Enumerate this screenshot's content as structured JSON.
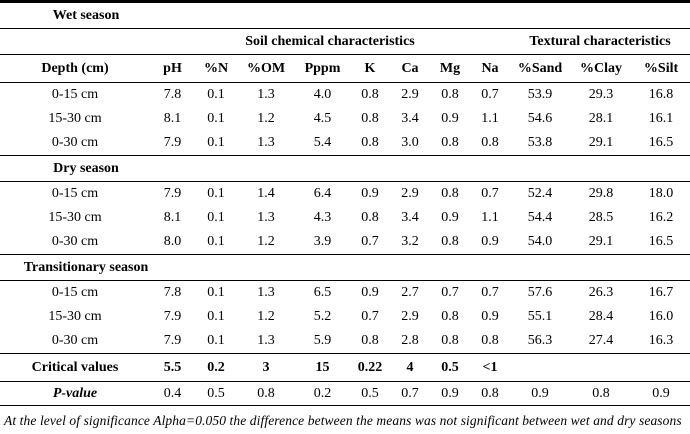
{
  "colors": {
    "text": "#000000",
    "background": "#ffffff",
    "rule": "#000000"
  },
  "table": {
    "columns": [
      "Depth (cm)",
      "pH",
      "%N",
      "%OM",
      "Pppm",
      "K",
      "Ca",
      "Mg",
      "Na",
      "%Sand",
      "%Clay",
      "%Silt"
    ],
    "group_headers": [
      {
        "label": "Soil chemical characteristics",
        "span": 8
      },
      {
        "label": "Textural characteristics",
        "span": 3
      }
    ],
    "sections": [
      {
        "season": "Wet season",
        "rows": [
          [
            "0-15 cm",
            "7.8",
            "0.1",
            "1.3",
            "4.0",
            "0.8",
            "2.9",
            "0.8",
            "0.7",
            "53.9",
            "29.3",
            "16.8"
          ],
          [
            "15-30 cm",
            "8.1",
            "0.1",
            "1.2",
            "4.5",
            "0.8",
            "3.4",
            "0.9",
            "1.1",
            "54.6",
            "28.1",
            "16.1"
          ],
          [
            "0-30 cm",
            "7.9",
            "0.1",
            "1.3",
            "5.4",
            "0.8",
            "3.0",
            "0.8",
            "0.8",
            "53.8",
            "29.1",
            "16.5"
          ]
        ]
      },
      {
        "season": "Dry season",
        "rows": [
          [
            "0-15 cm",
            "7.9",
            "0.1",
            "1.4",
            "6.4",
            "0.9",
            "2.9",
            "0.8",
            "0.7",
            "52.4",
            "29.8",
            "18.0"
          ],
          [
            "15-30 cm",
            "8.1",
            "0.1",
            "1.3",
            "4.3",
            "0.8",
            "3.4",
            "0.9",
            "1.1",
            "54.4",
            "28.5",
            "16.2"
          ],
          [
            "0-30 cm",
            "8.0",
            "0.1",
            "1.2",
            "3.9",
            "0.7",
            "3.2",
            "0.8",
            "0.9",
            "54.0",
            "29.1",
            "16.5"
          ]
        ]
      },
      {
        "season": "Transitionary season",
        "rows": [
          [
            "0-15 cm",
            "7.8",
            "0.1",
            "1.3",
            "6.5",
            "0.9",
            "2.7",
            "0.7",
            "0.7",
            "57.6",
            "26.3",
            "16.7"
          ],
          [
            "15-30 cm",
            "7.9",
            "0.1",
            "1.2",
            "5.2",
            "0.7",
            "2.9",
            "0.8",
            "0.9",
            "55.1",
            "28.4",
            "16.0"
          ],
          [
            "0-30 cm",
            "7.9",
            "0.1",
            "1.3",
            "5.9",
            "0.8",
            "2.8",
            "0.8",
            "0.8",
            "56.3",
            "27.4",
            "16.3"
          ]
        ]
      }
    ],
    "critical_values": {
      "label": "Critical values",
      "values": [
        "5.5",
        "0.2",
        "3",
        "15",
        "0.22",
        "4",
        "0.5",
        "<1",
        "",
        "",
        ""
      ]
    },
    "p_value": {
      "label": "P-value",
      "values": [
        "0.4",
        "0.5",
        "0.8",
        "0.2",
        "0.5",
        "0.7",
        "0.9",
        "0.8",
        "0.9",
        "0.8",
        "0.9"
      ]
    },
    "footnote": "At the level of significance Alpha=0.050 the difference between the means was not significant between wet and dry seasons"
  }
}
